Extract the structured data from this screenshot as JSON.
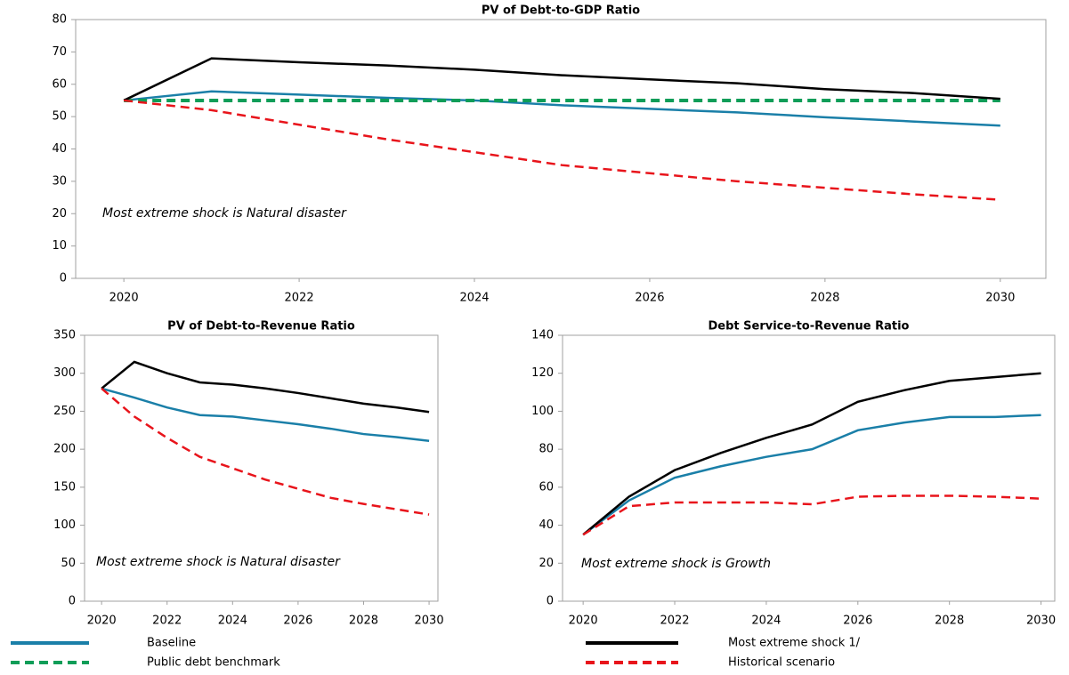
{
  "chart_data": [
    {
      "type": "line",
      "title": "PV of Debt-to-GDP Ratio",
      "annotation": "Most extreme shock is Natural disaster",
      "x": [
        2020,
        2021,
        2022,
        2023,
        2024,
        2025,
        2026,
        2027,
        2028,
        2029,
        2030
      ],
      "xlim": [
        2019.45,
        2030.52
      ],
      "xticks": [
        2020,
        2022,
        2024,
        2026,
        2028,
        2030
      ],
      "ylim": [
        0,
        80
      ],
      "yticks": [
        0,
        10,
        20,
        30,
        40,
        50,
        60,
        70,
        80
      ],
      "series": [
        {
          "name": "Baseline",
          "color": "#1a7fa8",
          "dashed": false,
          "values": [
            55,
            57.8,
            56.8,
            55.8,
            55,
            53.5,
            52.4,
            51.3,
            49.8,
            48.5,
            47.2
          ]
        },
        {
          "name": "Public debt benchmark",
          "color": "#0f9d58",
          "dashed": true,
          "values": [
            55,
            55,
            55,
            55,
            55,
            55,
            55,
            55,
            55,
            55,
            55
          ]
        },
        {
          "name": "Most extreme shock 1/",
          "color": "#000000",
          "dashed": false,
          "values": [
            55,
            68,
            66.8,
            65.8,
            64.5,
            62.8,
            61.5,
            60.3,
            58.5,
            57.3,
            55.5
          ]
        },
        {
          "name": "Historical scenario",
          "color": "#e8141b",
          "dashed": true,
          "values": [
            55,
            52,
            47.5,
            43,
            39,
            35,
            32.5,
            30,
            28,
            26,
            24.3
          ]
        }
      ]
    },
    {
      "type": "line",
      "title": "PV of Debt-to-Revenue Ratio",
      "annotation": "Most extreme shock is Natural disaster",
      "x": [
        2020,
        2021,
        2022,
        2023,
        2024,
        2025,
        2026,
        2027,
        2028,
        2029,
        2030
      ],
      "xlim": [
        2019.48,
        2030.27
      ],
      "xticks": [
        2020,
        2022,
        2024,
        2026,
        2028,
        2030
      ],
      "ylim": [
        0,
        350
      ],
      "yticks": [
        0,
        50,
        100,
        150,
        200,
        250,
        300,
        350
      ],
      "series": [
        {
          "color": "#1a7fa8",
          "dashed": false,
          "values": [
            280,
            268,
            255,
            245,
            243,
            238,
            233,
            227,
            220,
            216,
            211
          ]
        },
        {
          "color": "#000000",
          "dashed": false,
          "values": [
            280,
            315,
            300,
            288,
            285,
            280,
            274,
            267,
            260,
            255,
            249
          ]
        },
        {
          "color": "#e8141b",
          "dashed": true,
          "values": [
            280,
            243,
            215,
            190,
            175,
            160,
            148,
            136,
            128,
            121,
            114
          ]
        }
      ]
    },
    {
      "type": "line",
      "title": "Debt Service-to-Revenue Ratio",
      "annotation": "Most extreme shock is Growth",
      "x": [
        2020,
        2021,
        2022,
        2023,
        2024,
        2025,
        2026,
        2027,
        2028,
        2029,
        2030
      ],
      "xlim": [
        2019.55,
        2030.3
      ],
      "xticks": [
        2020,
        2022,
        2024,
        2026,
        2028,
        2030
      ],
      "ylim": [
        0,
        140
      ],
      "yticks": [
        0,
        20,
        40,
        60,
        80,
        100,
        120,
        140
      ],
      "series": [
        {
          "color": "#1a7fa8",
          "dashed": false,
          "values": [
            35,
            53,
            65,
            71,
            76,
            80,
            90,
            94,
            97,
            97,
            98
          ]
        },
        {
          "color": "#000000",
          "dashed": false,
          "values": [
            35,
            55,
            69,
            78,
            86,
            93,
            105,
            111,
            116,
            118,
            120
          ]
        },
        {
          "color": "#e8141b",
          "dashed": true,
          "values": [
            35,
            50,
            52,
            52,
            52,
            51,
            55,
            55.5,
            55.5,
            55,
            54
          ]
        }
      ]
    }
  ]
}
